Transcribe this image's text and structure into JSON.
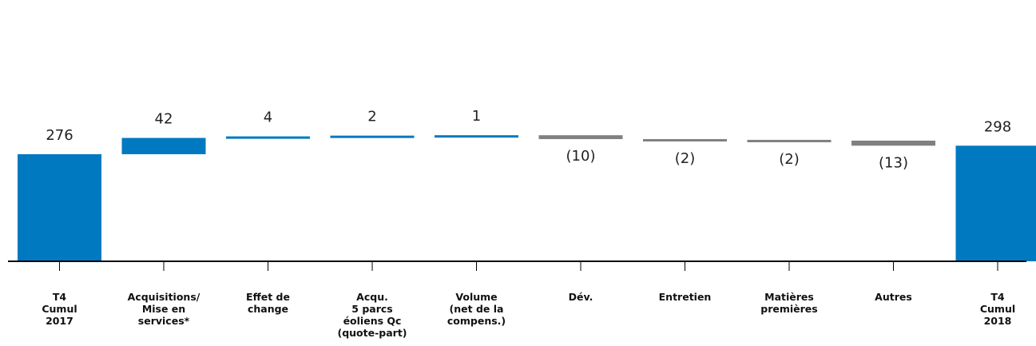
{
  "chart_data": {
    "type": "bar",
    "subtype": "waterfall",
    "categories": [
      [
        "T4",
        "Cumul",
        "2017"
      ],
      [
        "Acquisitions/",
        "Mise en",
        "services*"
      ],
      [
        "Effet de",
        "change"
      ],
      [
        "Acqu.",
        "5 parcs",
        "éoliens Qc",
        "(quote-part)"
      ],
      [
        "Volume",
        "(net de la",
        "compens.)"
      ],
      [
        "Dév."
      ],
      [
        "Entretien"
      ],
      [
        "Matières",
        "premières"
      ],
      [
        "Autres"
      ],
      [
        "T4",
        "Cumul",
        "2018"
      ]
    ],
    "values": [
      276,
      42,
      4,
      2,
      1,
      -10,
      -2,
      -2,
      -13,
      298
    ],
    "bar_kinds": [
      "total",
      "delta",
      "delta",
      "delta",
      "delta",
      "delta",
      "delta",
      "delta",
      "delta",
      "total"
    ],
    "value_labels": [
      "276",
      "42",
      "4",
      "2",
      "1",
      "(10)",
      "(2)",
      "(2)",
      "(13)",
      "298"
    ],
    "ylim": [
      0,
      335
    ],
    "colors": {
      "increase": "#0079c1",
      "decrease": "#808080",
      "total": "#0079c1",
      "axis": "#000000"
    }
  }
}
